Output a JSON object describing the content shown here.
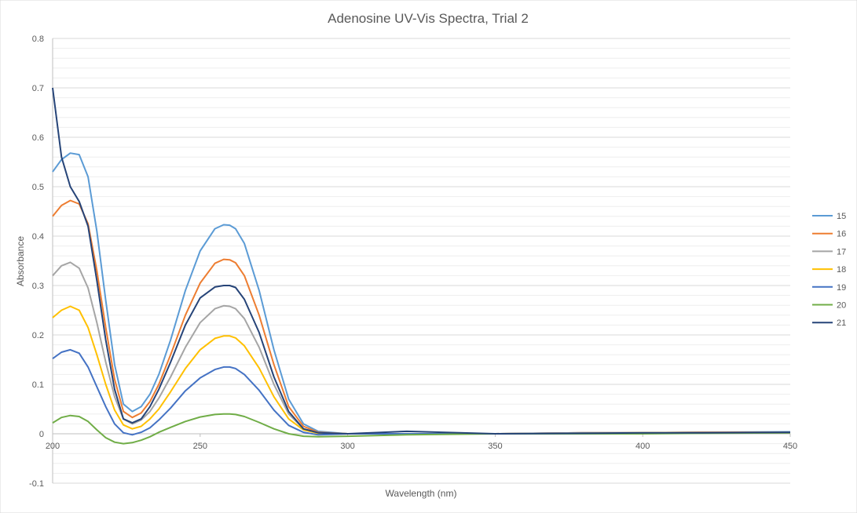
{
  "chart_data": {
    "type": "line",
    "title": "Adenosine UV-Vis Spectra, Trial 2",
    "xlabel": "Wavelength (nm)",
    "ylabel": "Absorbance",
    "xlim": [
      200,
      450
    ],
    "ylim": [
      -0.1,
      0.8
    ],
    "x_ticks": [
      200,
      250,
      300,
      350,
      400,
      450
    ],
    "y_ticks": [
      -0.1,
      0,
      0.1,
      0.2,
      0.3,
      0.4,
      0.5,
      0.6,
      0.7,
      0.8
    ],
    "y_tick_labels": [
      "-0.1",
      "0",
      "0.1",
      "0.2",
      "0.3",
      "0.4",
      "0.5",
      "0.6",
      "0.7",
      "0.8"
    ],
    "x_tick_labels": [
      "200",
      "250",
      "300",
      "350",
      "400",
      "450"
    ],
    "grid": true,
    "minor_grid": true,
    "legend_position": "right",
    "x": [
      200,
      203,
      206,
      209,
      212,
      215,
      218,
      221,
      224,
      227,
      230,
      233,
      236,
      240,
      245,
      250,
      255,
      258,
      260,
      262,
      265,
      270,
      275,
      280,
      285,
      290,
      300,
      320,
      350,
      380,
      400,
      420,
      450
    ],
    "series": [
      {
        "name": "15",
        "color": "#5B9BD5",
        "values": [
          0.53,
          0.555,
          0.568,
          0.565,
          0.52,
          0.41,
          0.27,
          0.14,
          0.06,
          0.045,
          0.055,
          0.08,
          0.12,
          0.19,
          0.29,
          0.37,
          0.415,
          0.423,
          0.422,
          0.415,
          0.385,
          0.29,
          0.17,
          0.07,
          0.02,
          0.005,
          0.0,
          0.0,
          0.0,
          0.002,
          0.002,
          0.003,
          0.004
        ]
      },
      {
        "name": "16",
        "color": "#ED7D31",
        "values": [
          0.44,
          0.462,
          0.472,
          0.465,
          0.425,
          0.33,
          0.215,
          0.11,
          0.045,
          0.033,
          0.042,
          0.065,
          0.1,
          0.16,
          0.24,
          0.305,
          0.345,
          0.353,
          0.352,
          0.346,
          0.32,
          0.24,
          0.14,
          0.055,
          0.015,
          0.003,
          0.0,
          0.0,
          0.0,
          0.002,
          0.002,
          0.003,
          0.003
        ]
      },
      {
        "name": "17",
        "color": "#A5A5A5",
        "values": [
          0.32,
          0.34,
          0.347,
          0.335,
          0.295,
          0.225,
          0.145,
          0.075,
          0.03,
          0.02,
          0.028,
          0.045,
          0.072,
          0.115,
          0.175,
          0.225,
          0.253,
          0.259,
          0.258,
          0.253,
          0.233,
          0.175,
          0.1,
          0.04,
          0.01,
          0.002,
          0.0,
          0.0,
          0.0,
          0.002,
          0.002,
          0.002,
          0.003
        ]
      },
      {
        "name": "18",
        "color": "#FFC000",
        "values": [
          0.235,
          0.25,
          0.258,
          0.25,
          0.215,
          0.16,
          0.1,
          0.048,
          0.018,
          0.01,
          0.015,
          0.03,
          0.05,
          0.085,
          0.132,
          0.17,
          0.193,
          0.198,
          0.198,
          0.194,
          0.178,
          0.133,
          0.075,
          0.03,
          0.008,
          0.001,
          0.0,
          0.0,
          0.0,
          0.001,
          0.002,
          0.002,
          0.002
        ]
      },
      {
        "name": "19",
        "color": "#4472C4",
        "values": [
          0.152,
          0.165,
          0.17,
          0.163,
          0.135,
          0.095,
          0.055,
          0.02,
          0.002,
          -0.002,
          0.003,
          0.012,
          0.028,
          0.052,
          0.087,
          0.113,
          0.13,
          0.135,
          0.135,
          0.132,
          0.12,
          0.088,
          0.048,
          0.017,
          0.003,
          -0.002,
          0.0,
          0.0,
          0.0,
          0.001,
          0.001,
          0.002,
          0.002
        ]
      },
      {
        "name": "20",
        "color": "#70AD47",
        "values": [
          0.022,
          0.033,
          0.037,
          0.035,
          0.025,
          0.008,
          -0.008,
          -0.017,
          -0.02,
          -0.018,
          -0.013,
          -0.006,
          0.003,
          0.013,
          0.025,
          0.034,
          0.039,
          0.04,
          0.04,
          0.039,
          0.035,
          0.023,
          0.01,
          0.0,
          -0.005,
          -0.006,
          -0.005,
          -0.002,
          0.0,
          0.0,
          0.0,
          0.001,
          0.002
        ]
      },
      {
        "name": "21",
        "color": "#264478",
        "values": [
          0.7,
          0.56,
          0.5,
          0.47,
          0.42,
          0.31,
          0.19,
          0.09,
          0.03,
          0.022,
          0.03,
          0.055,
          0.09,
          0.145,
          0.22,
          0.275,
          0.297,
          0.3,
          0.3,
          0.296,
          0.272,
          0.205,
          0.115,
          0.045,
          0.01,
          0.002,
          0.0,
          0.005,
          0.0,
          0.001,
          0.002,
          0.002,
          0.003
        ]
      }
    ]
  }
}
